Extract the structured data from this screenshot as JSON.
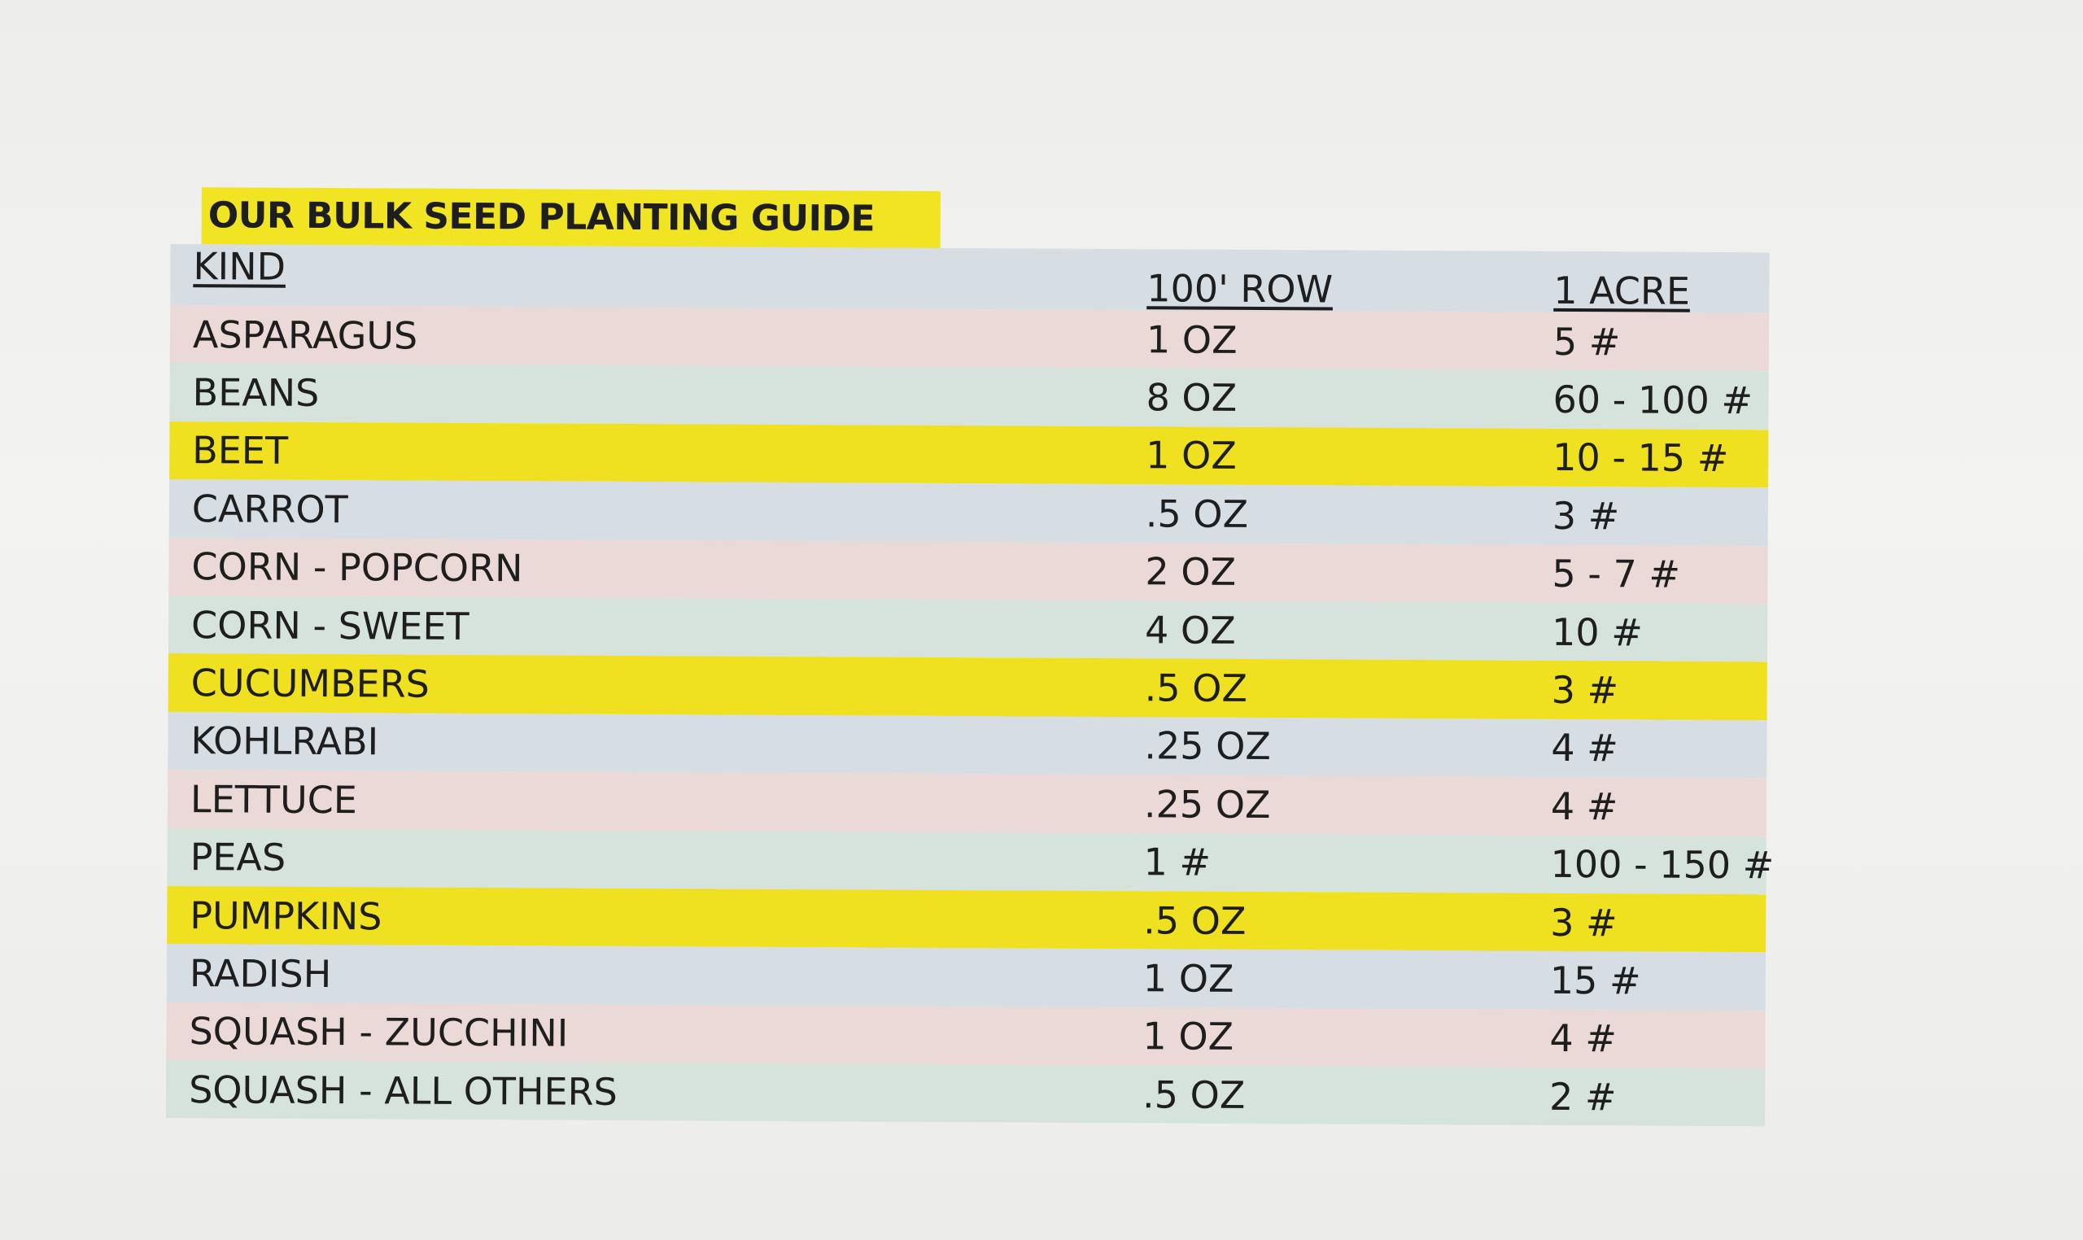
{
  "guide": {
    "title": "OUR BULK SEED PLANTING GUIDE",
    "columns": {
      "kind": "KIND",
      "row": "100' ROW",
      "acre": "1 ACRE"
    },
    "rows": [
      {
        "kind": "ASPARAGUS",
        "row": "1 OZ",
        "acre": "5 #",
        "color": "#ead9d7"
      },
      {
        "kind": "BEANS",
        "row": "8 OZ",
        "acre": "60 - 100 #",
        "color": "#d5e3dc"
      },
      {
        "kind": "BEET",
        "row": "1 OZ",
        "acre": "10 - 15 #",
        "color": "#efe120"
      },
      {
        "kind": "CARROT",
        "row": ".5 OZ",
        "acre": "3 #",
        "color": "#d6dde3"
      },
      {
        "kind": "CORN - POPCORN",
        "row": "2 OZ",
        "acre": "5 - 7 #",
        "color": "#ead9d7"
      },
      {
        "kind": "CORN - SWEET",
        "row": "4 OZ",
        "acre": "10 #",
        "color": "#d5e3dc"
      },
      {
        "kind": "CUCUMBERS",
        "row": ".5 OZ",
        "acre": "3 #",
        "color": "#efe120"
      },
      {
        "kind": "KOHLRABI",
        "row": ".25 OZ",
        "acre": "4 #",
        "color": "#d6dde3"
      },
      {
        "kind": "LETTUCE",
        "row": ".25 OZ",
        "acre": "4 #",
        "color": "#ead9d7"
      },
      {
        "kind": "PEAS",
        "row": "1 #",
        "acre": "100 - 150 #",
        "color": "#d5e3dc"
      },
      {
        "kind": "PUMPKINS",
        "row": ".5 OZ",
        "acre": "3 #",
        "color": "#efe120"
      },
      {
        "kind": "RADISH",
        "row": "1 OZ",
        "acre": "15 #",
        "color": "#d6dde3"
      },
      {
        "kind": "SQUASH - ZUCCHINI",
        "row": "1 OZ",
        "acre": "4 #",
        "color": "#ead9d7"
      },
      {
        "kind": "SQUASH - ALL OTHERS",
        "row": ".5 OZ",
        "acre": "2 #",
        "color": "#d5e3dc"
      }
    ]
  }
}
